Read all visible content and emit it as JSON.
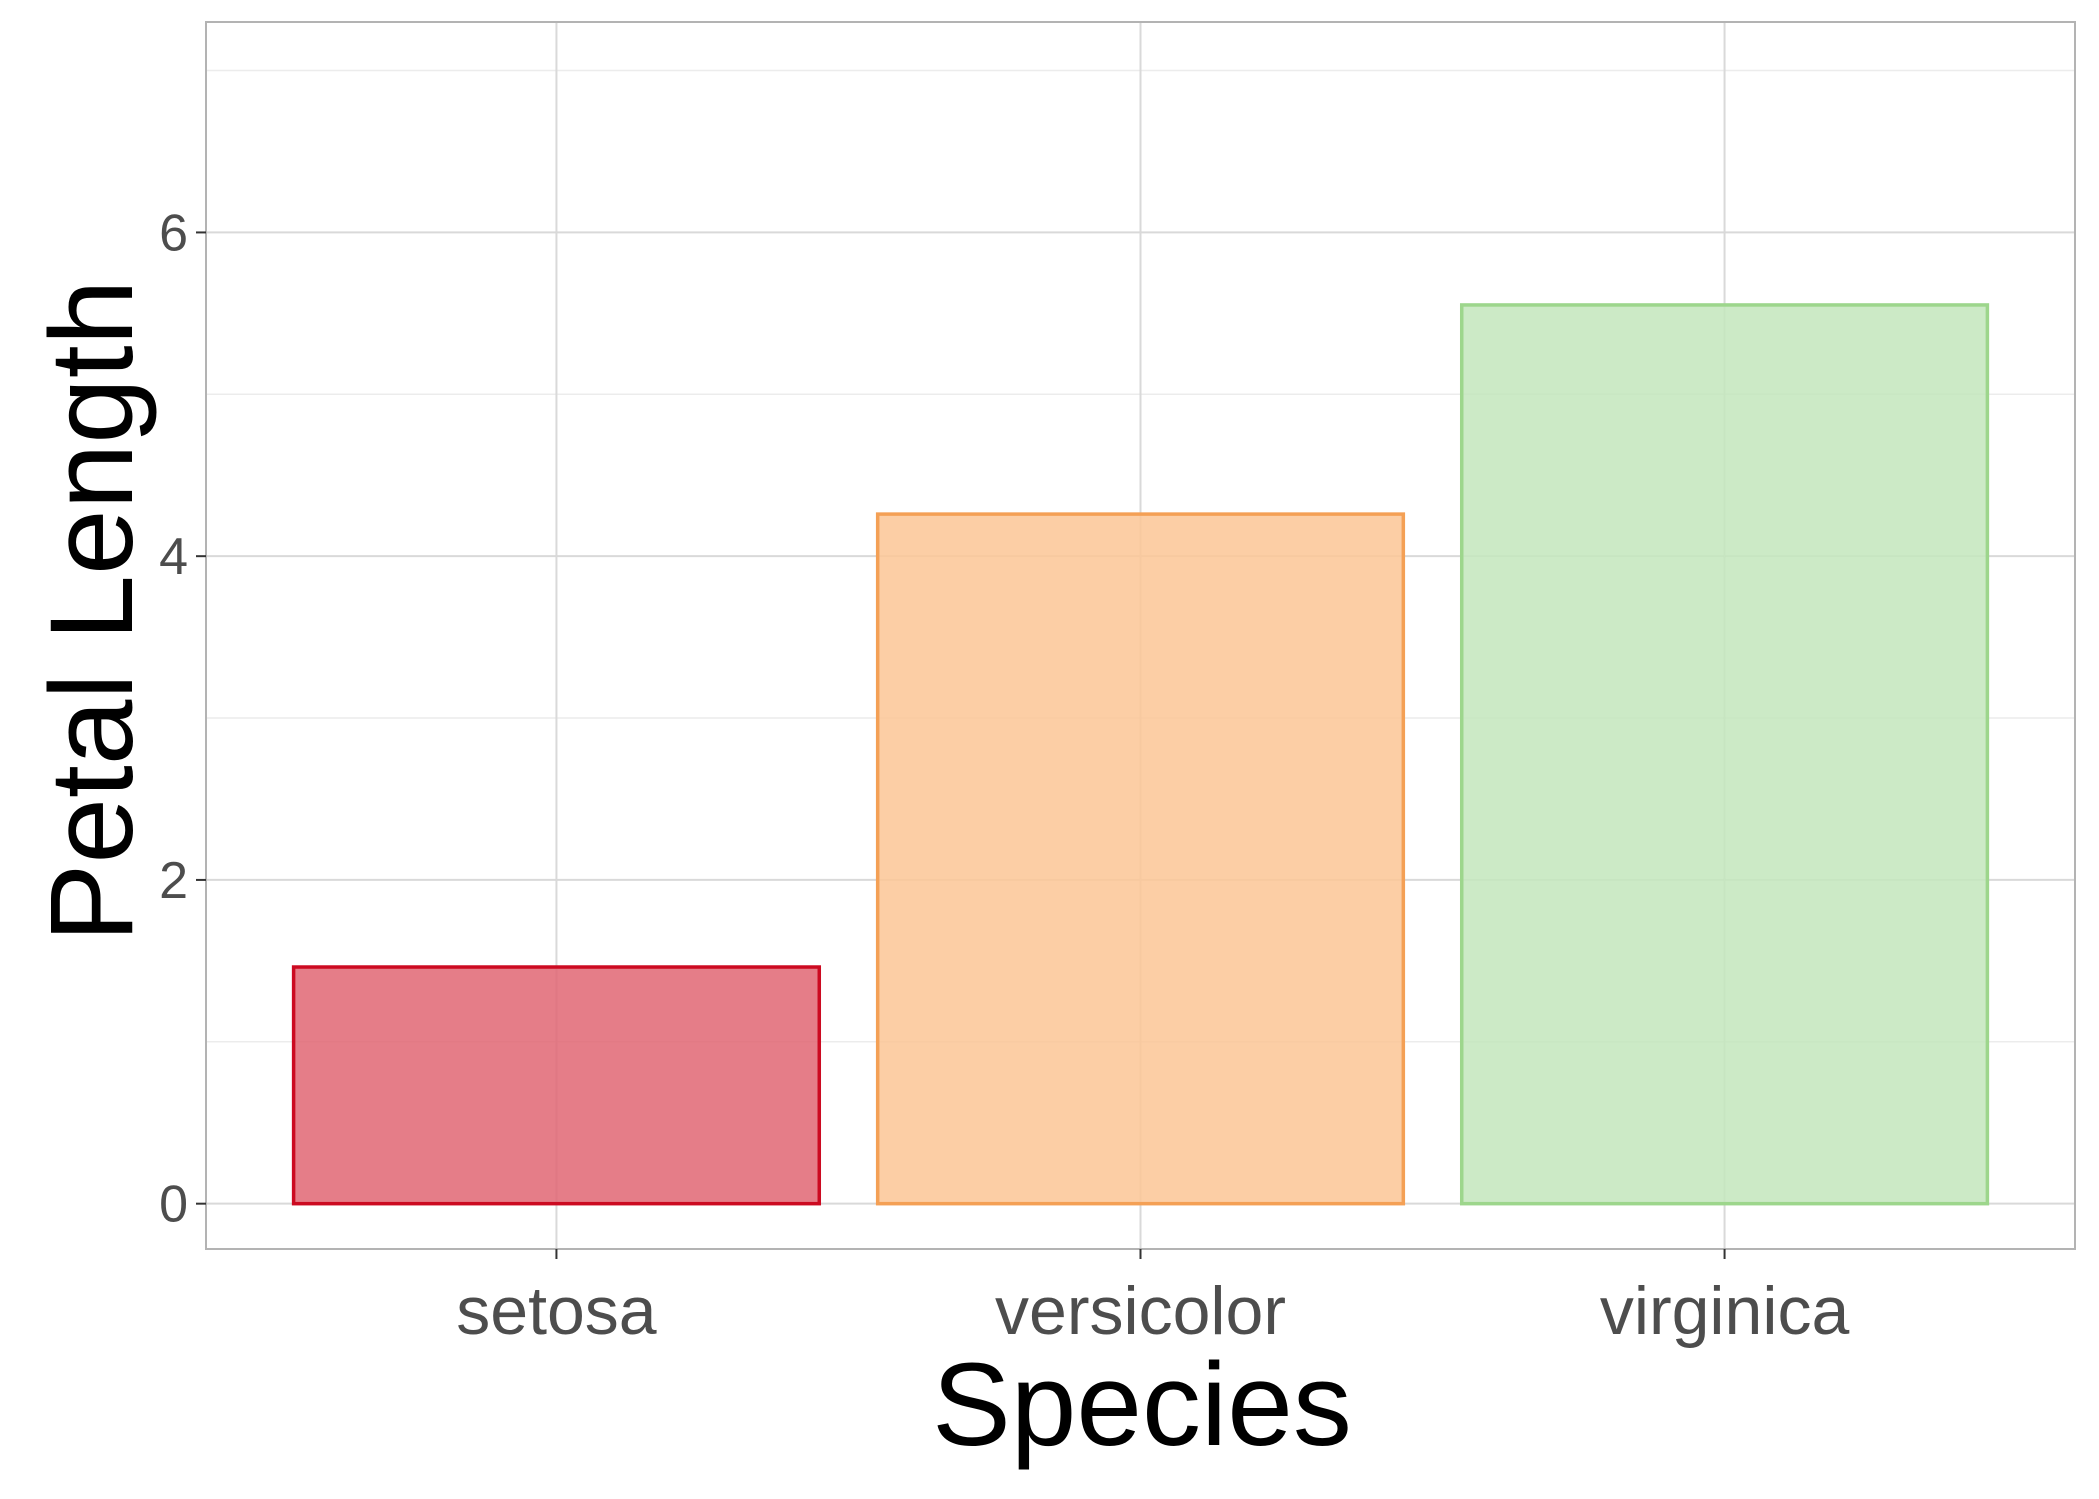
{
  "chart_data": {
    "type": "bar",
    "categories": [
      "setosa",
      "versicolor",
      "virginica"
    ],
    "values": [
      1.462,
      4.26,
      5.552
    ],
    "xlabel": "Species",
    "ylabel": "Petal Length",
    "ylim": [
      -0.28,
      7.3
    ],
    "yticks": [
      0,
      2,
      4,
      6
    ],
    "ytick_labels": [
      "0",
      "2",
      "4",
      "6"
    ],
    "grid": true,
    "legend": "none",
    "colors": {
      "fills": [
        "#e06673",
        "#fcc595",
        "#c3e6bc"
      ],
      "strokes": [
        "#cc0a21",
        "#f4a055",
        "#9dd68c"
      ],
      "panel_border": "#b3b3b3",
      "grid_major": "#d9d9d9",
      "grid_minor": "#ececec"
    }
  }
}
